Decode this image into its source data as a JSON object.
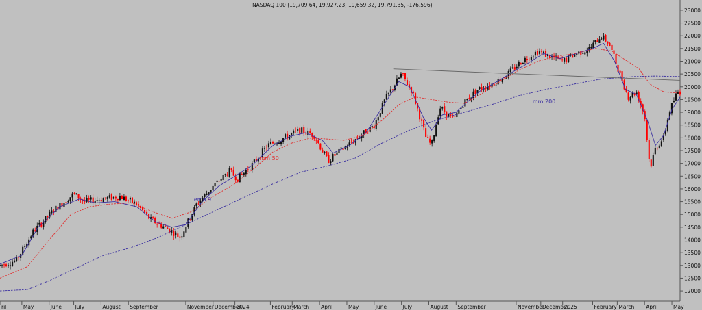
{
  "chart_data": {
    "type": "candlestick",
    "title": "I NASDAQ 100 (19,709.64, 19,927.23, 19,659.32, 19,791.35, -176.596)",
    "ylim": [
      11600,
      23400
    ],
    "y_ticks": [
      12000,
      12500,
      13000,
      13500,
      14000,
      14500,
      15000,
      15500,
      16000,
      16500,
      17000,
      17500,
      18000,
      18500,
      19000,
      19500,
      20000,
      20500,
      21000,
      21500,
      22000,
      22500,
      23000
    ],
    "y_tick_labels": [
      "12000",
      "12500",
      "13000",
      "13500",
      "14000",
      "14500",
      "15000",
      "15500",
      "16000",
      "16500",
      "17000",
      "17500",
      "18000",
      "18500",
      "19000",
      "19500",
      "20000",
      "20500",
      "21000",
      "21500",
      "22000",
      "22500",
      "23000"
    ],
    "x_labels": [
      "ril",
      "May",
      "June",
      "July",
      "August",
      "September",
      "November",
      "December",
      "2024",
      "February",
      "March",
      "April",
      "May",
      "June",
      "July",
      "August",
      "September",
      "November",
      "December",
      "2025",
      "February",
      "March",
      "April",
      "May"
    ],
    "x_positions": [
      0,
      8,
      18,
      27,
      37,
      47,
      68,
      78,
      86,
      99,
      107,
      117,
      127,
      137,
      147,
      157,
      167,
      189,
      198,
      206,
      217,
      226,
      236,
      246
    ],
    "up_color": "#111111",
    "down_color": "#ff0000",
    "price_path": [
      [
        0,
        13000
      ],
      [
        6,
        13200
      ],
      [
        12,
        14300
      ],
      [
        20,
        15200
      ],
      [
        27,
        15800
      ],
      [
        31,
        15500
      ],
      [
        37,
        15600
      ],
      [
        44,
        15700
      ],
      [
        50,
        15400
      ],
      [
        55,
        14800
      ],
      [
        62,
        14400
      ],
      [
        66,
        14100
      ],
      [
        72,
        15400
      ],
      [
        78,
        16100
      ],
      [
        84,
        16700
      ],
      [
        87,
        16400
      ],
      [
        92,
        16900
      ],
      [
        98,
        17700
      ],
      [
        104,
        18000
      ],
      [
        110,
        18300
      ],
      [
        115,
        18100
      ],
      [
        120,
        17100
      ],
      [
        126,
        17600
      ],
      [
        131,
        18000
      ],
      [
        137,
        18500
      ],
      [
        141,
        19500
      ],
      [
        147,
        20500
      ],
      [
        151,
        19800
      ],
      [
        156,
        18000
      ],
      [
        158,
        17700
      ],
      [
        161,
        19200
      ],
      [
        166,
        18700
      ],
      [
        170,
        19400
      ],
      [
        175,
        19900
      ],
      [
        180,
        20100
      ],
      [
        186,
        20500
      ],
      [
        191,
        21000
      ],
      [
        197,
        21400
      ],
      [
        201,
        21200
      ],
      [
        206,
        21000
      ],
      [
        211,
        21300
      ],
      [
        216,
        21500
      ],
      [
        220,
        22000
      ],
      [
        223,
        21700
      ],
      [
        226,
        20800
      ],
      [
        230,
        19600
      ],
      [
        233,
        19800
      ],
      [
        236,
        18900
      ],
      [
        238,
        16800
      ],
      [
        240,
        17600
      ],
      [
        243,
        18000
      ],
      [
        245,
        19000
      ],
      [
        248,
        19800
      ],
      [
        249,
        19800
      ]
    ],
    "series": [
      {
        "name": "ema 9",
        "color": "#3a2fa0",
        "values": [
          [
            0,
            13050
          ],
          [
            8,
            13400
          ],
          [
            14,
            14500
          ],
          [
            22,
            15300
          ],
          [
            29,
            15600
          ],
          [
            35,
            15450
          ],
          [
            42,
            15500
          ],
          [
            50,
            15300
          ],
          [
            57,
            14700
          ],
          [
            63,
            14500
          ],
          [
            68,
            14600
          ],
          [
            74,
            15500
          ],
          [
            80,
            16100
          ],
          [
            86,
            16500
          ],
          [
            92,
            16900
          ],
          [
            100,
            17700
          ],
          [
            106,
            18050
          ],
          [
            112,
            18200
          ],
          [
            118,
            17900
          ],
          [
            122,
            17400
          ],
          [
            128,
            17700
          ],
          [
            134,
            18200
          ],
          [
            140,
            19200
          ],
          [
            146,
            20200
          ],
          [
            150,
            20000
          ],
          [
            155,
            18800
          ],
          [
            158,
            18300
          ],
          [
            162,
            18900
          ],
          [
            167,
            19000
          ],
          [
            171,
            19400
          ],
          [
            176,
            19850
          ],
          [
            182,
            20200
          ],
          [
            188,
            20600
          ],
          [
            193,
            20900
          ],
          [
            199,
            21300
          ],
          [
            205,
            21100
          ],
          [
            211,
            21300
          ],
          [
            217,
            21500
          ],
          [
            221,
            21700
          ],
          [
            225,
            21000
          ],
          [
            229,
            19900
          ],
          [
            233,
            19700
          ],
          [
            237,
            18700
          ],
          [
            240,
            17700
          ],
          [
            243,
            18100
          ],
          [
            246,
            19100
          ],
          [
            249,
            19600
          ]
        ]
      },
      {
        "name": "mm 50",
        "color": "#e03030",
        "values": [
          [
            0,
            12500
          ],
          [
            10,
            12950
          ],
          [
            18,
            14000
          ],
          [
            26,
            15000
          ],
          [
            33,
            15300
          ],
          [
            40,
            15400
          ],
          [
            48,
            15450
          ],
          [
            56,
            15100
          ],
          [
            63,
            14850
          ],
          [
            70,
            15100
          ],
          [
            78,
            15700
          ],
          [
            86,
            16200
          ],
          [
            93,
            16800
          ],
          [
            100,
            17450
          ],
          [
            107,
            17800
          ],
          [
            114,
            18000
          ],
          [
            120,
            17950
          ],
          [
            126,
            17900
          ],
          [
            133,
            18100
          ],
          [
            140,
            18700
          ],
          [
            146,
            19300
          ],
          [
            152,
            19600
          ],
          [
            158,
            19500
          ],
          [
            164,
            19400
          ],
          [
            170,
            19350
          ],
          [
            176,
            19700
          ],
          [
            183,
            20200
          ],
          [
            190,
            20650
          ],
          [
            197,
            21000
          ],
          [
            204,
            21200
          ],
          [
            211,
            21300
          ],
          [
            218,
            21500
          ],
          [
            224,
            21400
          ],
          [
            229,
            21050
          ],
          [
            234,
            20700
          ],
          [
            238,
            20100
          ],
          [
            243,
            19800
          ],
          [
            249,
            19750
          ]
        ]
      },
      {
        "name": "mm 200",
        "color": "#3a2fa0",
        "values": [
          [
            0,
            12000
          ],
          [
            10,
            12050
          ],
          [
            18,
            12400
          ],
          [
            28,
            12900
          ],
          [
            38,
            13400
          ],
          [
            48,
            13700
          ],
          [
            58,
            14100
          ],
          [
            66,
            14500
          ],
          [
            74,
            14900
          ],
          [
            82,
            15300
          ],
          [
            90,
            15700
          ],
          [
            100,
            16200
          ],
          [
            110,
            16650
          ],
          [
            120,
            16900
          ],
          [
            130,
            17200
          ],
          [
            140,
            17800
          ],
          [
            150,
            18300
          ],
          [
            160,
            18700
          ],
          [
            170,
            19000
          ],
          [
            180,
            19300
          ],
          [
            190,
            19650
          ],
          [
            200,
            19900
          ],
          [
            210,
            20100
          ],
          [
            220,
            20300
          ],
          [
            226,
            20350
          ],
          [
            232,
            20400
          ],
          [
            240,
            20420
          ],
          [
            249,
            20400
          ]
        ]
      }
    ],
    "trendline": {
      "from": [
        144,
        20700
      ],
      "to": [
        249,
        20250
      ],
      "color": "#666666"
    },
    "annotations": [
      {
        "text": "ema 9",
        "x": 71,
        "y": 15520,
        "color": "#3a2fa0"
      },
      {
        "text": "mm 50",
        "x": 95,
        "y": 17130,
        "color": "#e03030"
      },
      {
        "text": "mm 200",
        "x": 195,
        "y": 19350,
        "color": "#3a2fa0"
      }
    ],
    "grid": false,
    "legend": "none"
  }
}
